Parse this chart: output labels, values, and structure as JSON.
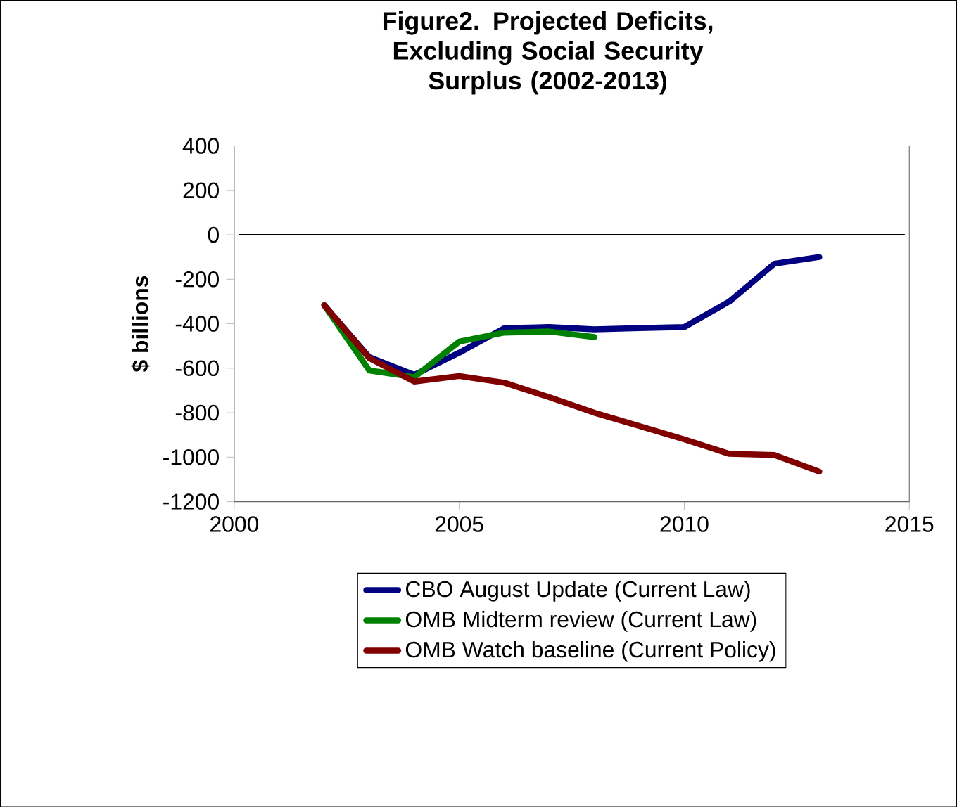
{
  "chart_data": {
    "type": "line",
    "title": "Figure2.  Projected Deficits, Excluding Social Security Surplus (2002-2013)",
    "ylabel": "$ billions",
    "xlim": [
      2000,
      2015
    ],
    "xticks": [
      2000,
      2005,
      2010,
      2015
    ],
    "ylim": [
      -1200,
      400
    ],
    "yticks": [
      -1200,
      -1000,
      -800,
      -600,
      -400,
      -200,
      0,
      200,
      400
    ],
    "legend": "bottom",
    "grid": false,
    "marker": "none",
    "line_style": "solid",
    "ref_lines": [
      {
        "axis": "y",
        "value": 0,
        "color": "#000000"
      }
    ],
    "series": [
      {
        "name": "CBO August Update (Current Law)",
        "color": "#000080",
        "x": [
          2002,
          2003,
          2004,
          2005,
          2006,
          2007,
          2008,
          2009,
          2010,
          2011,
          2012,
          2013
        ],
        "values": [
          -317,
          -550,
          -630,
          -530,
          -420,
          -415,
          -425,
          -420,
          -415,
          -300,
          -130,
          -100
        ]
      },
      {
        "name": "OMB Midterm review (Current Law)",
        "color": "#008000",
        "x": [
          2002,
          2003,
          2004,
          2005,
          2006,
          2007,
          2008
        ],
        "values": [
          -317,
          -610,
          -640,
          -480,
          -440,
          -435,
          -460
        ]
      },
      {
        "name": "OMB Watch baseline (Current Policy)",
        "color": "#800000",
        "x": [
          2002,
          2003,
          2004,
          2005,
          2006,
          2007,
          2008,
          2009,
          2010,
          2011,
          2012,
          2013
        ],
        "values": [
          -317,
          -555,
          -660,
          -635,
          -665,
          -730,
          -800,
          -860,
          -920,
          -985,
          -990,
          -1065
        ]
      }
    ]
  }
}
